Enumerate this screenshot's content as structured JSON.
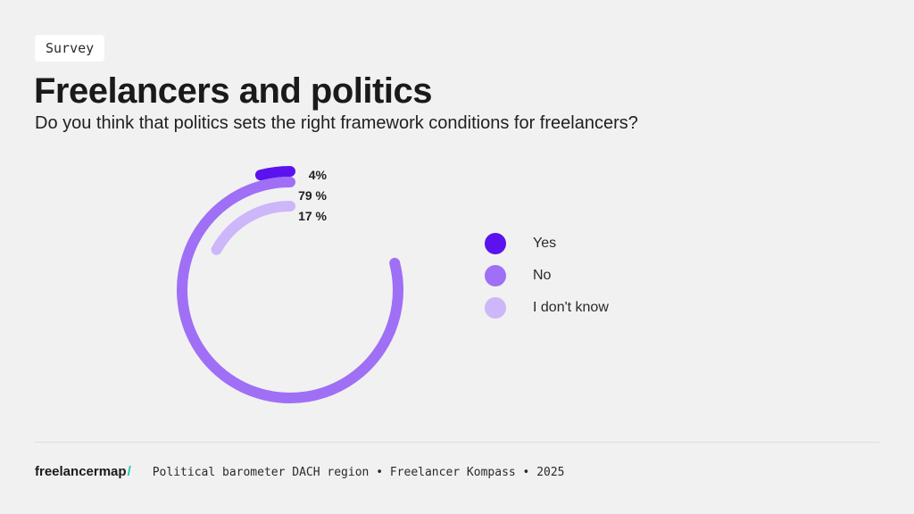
{
  "header": {
    "tag": "Survey",
    "title": "Freelancers and politics",
    "subtitle": "Do you think that politics sets the right framework conditions for freelancers?"
  },
  "chart_data": {
    "type": "pie",
    "variant": "radial-bar",
    "categories": [
      "Yes",
      "No",
      "I don't know"
    ],
    "values": [
      4,
      79,
      17
    ],
    "value_labels": [
      "4%",
      "79 %",
      "17 %"
    ],
    "colors": [
      "#5b12ee",
      "#9f6ff6",
      "#cdb6fa"
    ],
    "legend_position": "right"
  },
  "legend": {
    "items": [
      {
        "label": "Yes",
        "color": "#5b12ee"
      },
      {
        "label": "No",
        "color": "#9f6ff6"
      },
      {
        "label": "I don't know",
        "color": "#cdb6fa"
      }
    ]
  },
  "footer": {
    "logo_text": "freelancermap",
    "logo_mark": "/",
    "source": "Political barometer DACH region • Freelancer Kompass • 2025"
  }
}
